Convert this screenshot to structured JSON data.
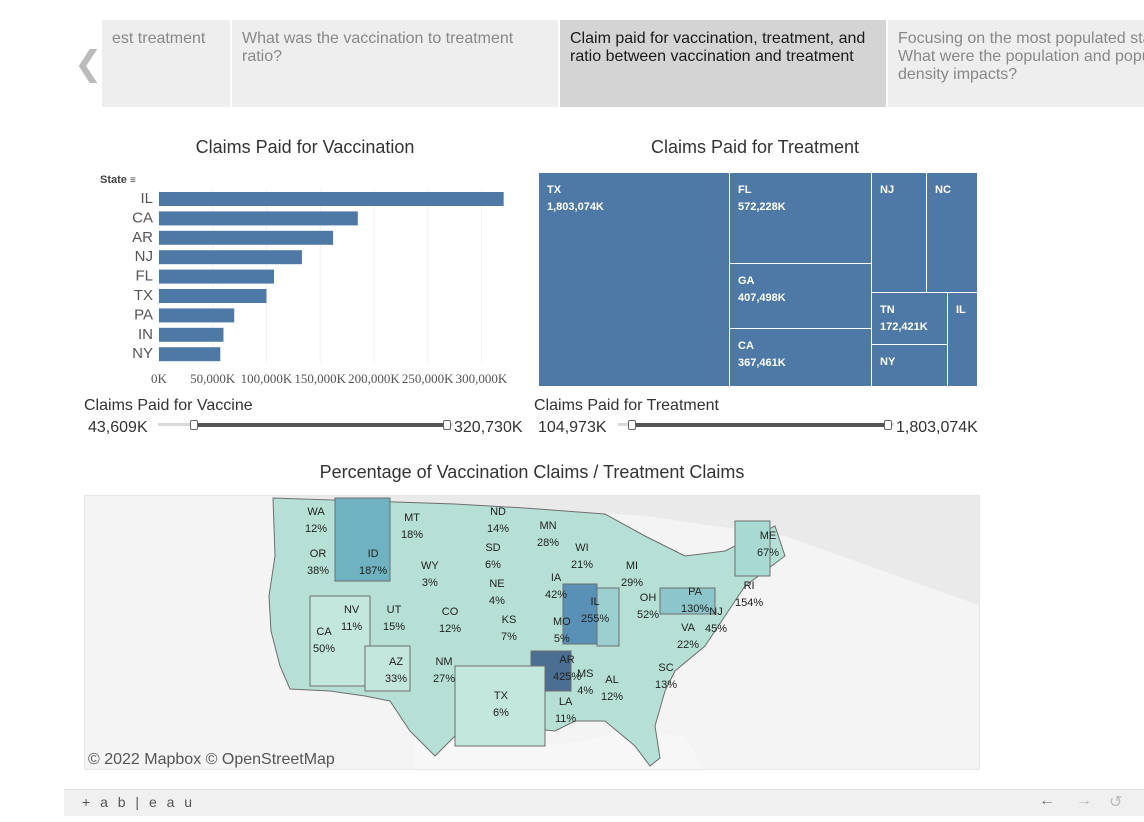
{
  "story": {
    "points": [
      {
        "label": "est treatment"
      },
      {
        "label": "What was the vaccination to treatment ratio?"
      },
      {
        "label": "Claim paid for vaccination, treatment, and ratio between vaccination and treatment"
      },
      {
        "label": "Focusing on the most populated sta What were the population and popu density impacts?"
      }
    ]
  },
  "vaccination_chart": {
    "title": "Claims Paid for Vaccination",
    "axis_field": "State"
  },
  "treatment_chart": {
    "title": "Claims Paid for Treatment"
  },
  "chart_data": [
    {
      "type": "bar",
      "title": "Claims Paid for Vaccination",
      "orientation": "horizontal",
      "ylabel": "State",
      "categories": [
        "IL",
        "CA",
        "AR",
        "NJ",
        "FL",
        "TX",
        "PA",
        "IN",
        "NY"
      ],
      "values": [
        320730,
        185000,
        162000,
        133000,
        107000,
        100000,
        70000,
        60000,
        57000
      ],
      "xlim": [
        0,
        335000
      ],
      "xticks": [
        "0K",
        "50,000K",
        "100,000K",
        "150,000K",
        "200,000K",
        "250,000K",
        "300,000K"
      ],
      "tick_values": [
        0,
        50000,
        100000,
        150000,
        200000,
        250000,
        300000
      ],
      "color": "#4e79a7"
    },
    {
      "type": "treemap",
      "title": "Claims Paid for Treatment",
      "cells": [
        {
          "state": "TX",
          "value_label": "1,803,074K"
        },
        {
          "state": "FL",
          "value_label": "572,228K"
        },
        {
          "state": "GA",
          "value_label": "407,498K"
        },
        {
          "state": "CA",
          "value_label": "367,461K"
        },
        {
          "state": "NJ",
          "value_label": ""
        },
        {
          "state": "NC",
          "value_label": ""
        },
        {
          "state": "TN",
          "value_label": "172,421K"
        },
        {
          "state": "IL",
          "value_label": ""
        },
        {
          "state": "NY",
          "value_label": ""
        }
      ],
      "color": "#4e79a7"
    }
  ],
  "filters": {
    "vaccine": {
      "label": "Claims Paid for Vaccine",
      "min": "43,609K",
      "max": "320,730K"
    },
    "treatment": {
      "label": "Claims Paid for Treatment",
      "min": "104,973K",
      "max": "1,803,074K"
    }
  },
  "map": {
    "title": "Percentage of Vaccination Claims / Treatment Claims",
    "attribution": "© 2022 Mapbox © OpenStreetMap",
    "states": [
      {
        "state": "WA",
        "pct": "12%"
      },
      {
        "state": "MT",
        "pct": "18%"
      },
      {
        "state": "ND",
        "pct": "14%"
      },
      {
        "state": "MN",
        "pct": "28%"
      },
      {
        "state": "ME",
        "pct": "67%"
      },
      {
        "state": "OR",
        "pct": "38%"
      },
      {
        "state": "ID",
        "pct": "187%"
      },
      {
        "state": "WY",
        "pct": "3%"
      },
      {
        "state": "SD",
        "pct": "6%"
      },
      {
        "state": "WI",
        "pct": "21%"
      },
      {
        "state": "MI",
        "pct": "29%"
      },
      {
        "state": "NE",
        "pct": "4%"
      },
      {
        "state": "IA",
        "pct": "42%"
      },
      {
        "state": "RI",
        "pct": "154%"
      },
      {
        "state": "NV",
        "pct": "11%"
      },
      {
        "state": "UT",
        "pct": "15%"
      },
      {
        "state": "CO",
        "pct": "12%"
      },
      {
        "state": "IL",
        "pct": "255%"
      },
      {
        "state": "OH",
        "pct": "52%"
      },
      {
        "state": "PA",
        "pct": "130%"
      },
      {
        "state": "NJ",
        "pct": "45%"
      },
      {
        "state": "CA",
        "pct": "50%"
      },
      {
        "state": "KS",
        "pct": "7%"
      },
      {
        "state": "MO",
        "pct": "5%"
      },
      {
        "state": "VA",
        "pct": "22%"
      },
      {
        "state": "AZ",
        "pct": "33%"
      },
      {
        "state": "NM",
        "pct": "27%"
      },
      {
        "state": "AR",
        "pct": "425%"
      },
      {
        "state": "SC",
        "pct": "13%"
      },
      {
        "state": "MS",
        "pct": "4%"
      },
      {
        "state": "AL",
        "pct": "12%"
      },
      {
        "state": "TX",
        "pct": "6%"
      },
      {
        "state": "LA",
        "pct": "11%"
      }
    ]
  },
  "footer": {
    "logo": "+ a b | e a u"
  },
  "colors": {
    "bar": "#4e79a7",
    "map_light": "#b3dfd6",
    "map_mid": "#7fb3c3",
    "map_dark": "#4b6f92",
    "active_story": "#d4d4d4"
  }
}
